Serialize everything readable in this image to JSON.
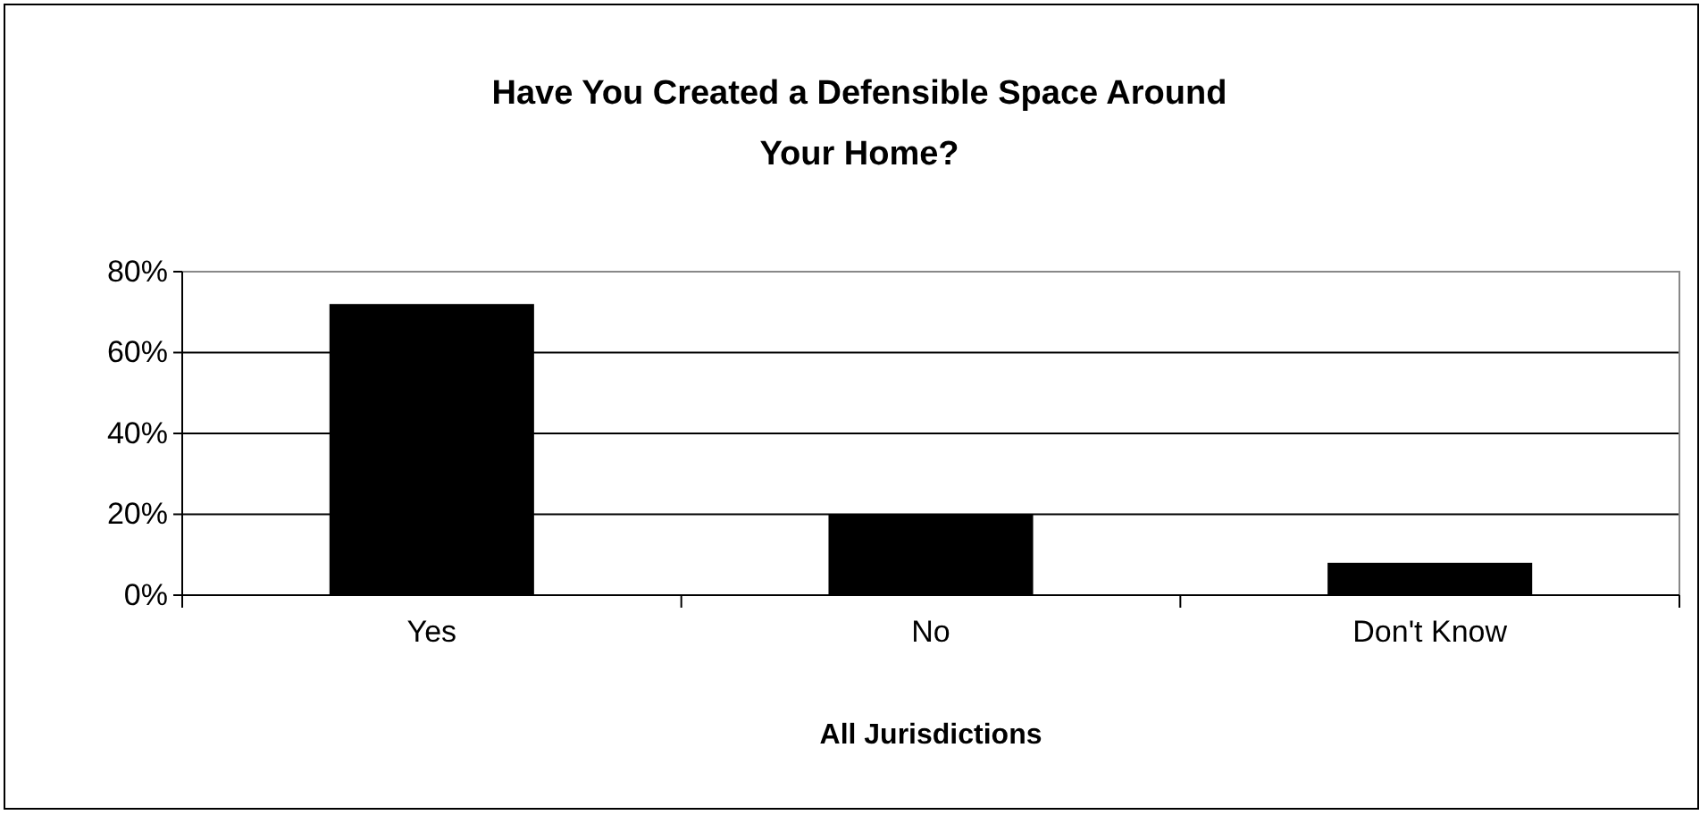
{
  "chart_data": {
    "type": "bar",
    "title": "Have You Created a Defensible Space Around Your Home?",
    "xlabel": "All Jurisdictions",
    "categories": [
      "Yes",
      "No",
      "Don't Know"
    ],
    "values": [
      72,
      20,
      8
    ],
    "color": "#000000",
    "ylim": [
      0,
      80
    ],
    "yticks": [
      {
        "value": 0,
        "label": "0%"
      },
      {
        "value": 20,
        "label": "20%"
      },
      {
        "value": 40,
        "label": "40%"
      },
      {
        "value": 60,
        "label": "60%"
      },
      {
        "value": 80,
        "label": "80%"
      }
    ],
    "grid": "y"
  }
}
